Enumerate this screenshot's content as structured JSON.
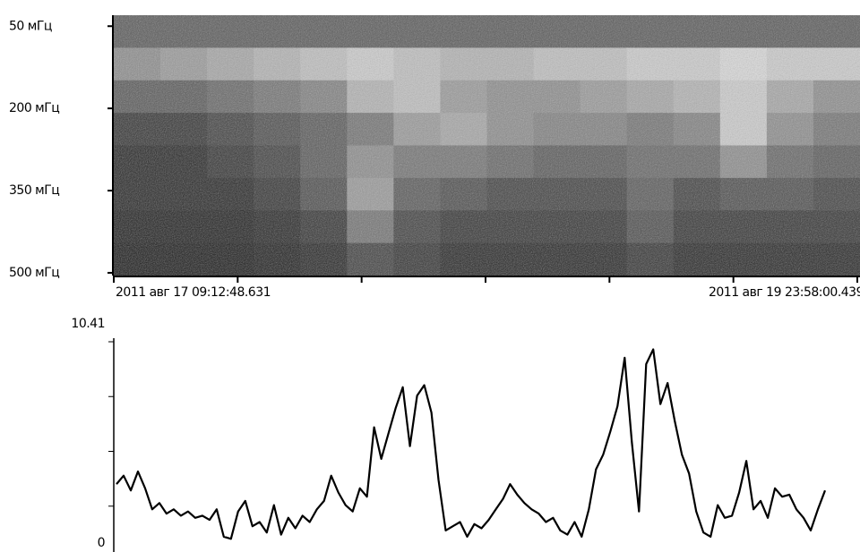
{
  "chart_data": [
    {
      "type": "heatmap",
      "ylim": [
        30,
        505
      ],
      "yticks": [
        {
          "value": 50,
          "label": "50 мГц"
        },
        {
          "value": 200,
          "label": "200 мГц"
        },
        {
          "value": 350,
          "label": "350 мГц"
        },
        {
          "value": 500,
          "label": "500 мГц"
        }
      ],
      "xtick_labels": [
        "2011 авг 17 09:12:48.631",
        null,
        null,
        null,
        null,
        null,
        "2011 авг 19 23:58:00.439"
      ],
      "z": [
        [
          0.35,
          0.35,
          0.35,
          0.35,
          0.35,
          0.35,
          0.35,
          0.35,
          0.35,
          0.35,
          0.35,
          0.35,
          0.35,
          0.35,
          0.35,
          0.35
        ],
        [
          0.55,
          0.6,
          0.65,
          0.7,
          0.75,
          0.8,
          0.75,
          0.7,
          0.7,
          0.75,
          0.75,
          0.8,
          0.8,
          0.85,
          0.8,
          0.8
        ],
        [
          0.35,
          0.35,
          0.4,
          0.45,
          0.5,
          0.7,
          0.75,
          0.6,
          0.55,
          0.55,
          0.6,
          0.65,
          0.7,
          0.8,
          0.65,
          0.55
        ],
        [
          0.2,
          0.2,
          0.25,
          0.3,
          0.35,
          0.45,
          0.6,
          0.65,
          0.55,
          0.5,
          0.5,
          0.45,
          0.5,
          0.8,
          0.55,
          0.45
        ],
        [
          0.15,
          0.15,
          0.2,
          0.25,
          0.35,
          0.55,
          0.45,
          0.45,
          0.4,
          0.35,
          0.35,
          0.4,
          0.4,
          0.55,
          0.4,
          0.35
        ],
        [
          0.15,
          0.15,
          0.15,
          0.2,
          0.3,
          0.6,
          0.35,
          0.3,
          0.25,
          0.25,
          0.25,
          0.35,
          0.25,
          0.3,
          0.3,
          0.25
        ],
        [
          0.12,
          0.12,
          0.12,
          0.15,
          0.2,
          0.45,
          0.25,
          0.2,
          0.2,
          0.2,
          0.2,
          0.3,
          0.2,
          0.2,
          0.2,
          0.2
        ],
        [
          0.1,
          0.1,
          0.1,
          0.12,
          0.15,
          0.25,
          0.2,
          0.15,
          0.15,
          0.15,
          0.15,
          0.2,
          0.15,
          0.15,
          0.15,
          0.15
        ]
      ]
    },
    {
      "type": "line",
      "color": "#000000",
      "ylim": [
        0,
        10.41
      ],
      "yticks": [
        0,
        10.41
      ],
      "minor_yticks": [
        2.6025,
        5.205,
        7.8075
      ],
      "values": [
        2.8,
        3.2,
        2.5,
        3.4,
        2.6,
        1.6,
        1.9,
        1.4,
        1.6,
        1.3,
        1.5,
        1.2,
        1.3,
        1.1,
        1.6,
        0.3,
        0.2,
        1.5,
        2.0,
        0.8,
        1.0,
        0.5,
        1.8,
        0.4,
        1.2,
        0.7,
        1.3,
        1.0,
        1.6,
        2.0,
        3.2,
        2.4,
        1.8,
        1.5,
        2.6,
        2.2,
        5.5,
        4.0,
        5.2,
        6.4,
        7.4,
        4.6,
        7.0,
        7.5,
        6.2,
        3.0,
        0.6,
        0.8,
        1.0,
        0.3,
        0.9,
        0.7,
        1.1,
        1.6,
        2.1,
        2.8,
        2.3,
        1.9,
        1.6,
        1.4,
        1.0,
        1.2,
        0.6,
        0.4,
        1.0,
        0.3,
        1.6,
        3.5,
        4.2,
        5.3,
        6.5,
        8.8,
        4.8,
        1.5,
        8.5,
        9.2,
        6.6,
        7.6,
        5.8,
        4.2,
        3.3,
        1.5,
        0.5,
        0.3,
        1.8,
        1.2,
        1.3,
        2.4,
        3.9,
        1.6,
        2.0,
        1.2,
        2.6,
        2.2,
        2.3,
        1.6,
        1.2,
        0.6,
        1.6,
        2.5
      ]
    }
  ]
}
